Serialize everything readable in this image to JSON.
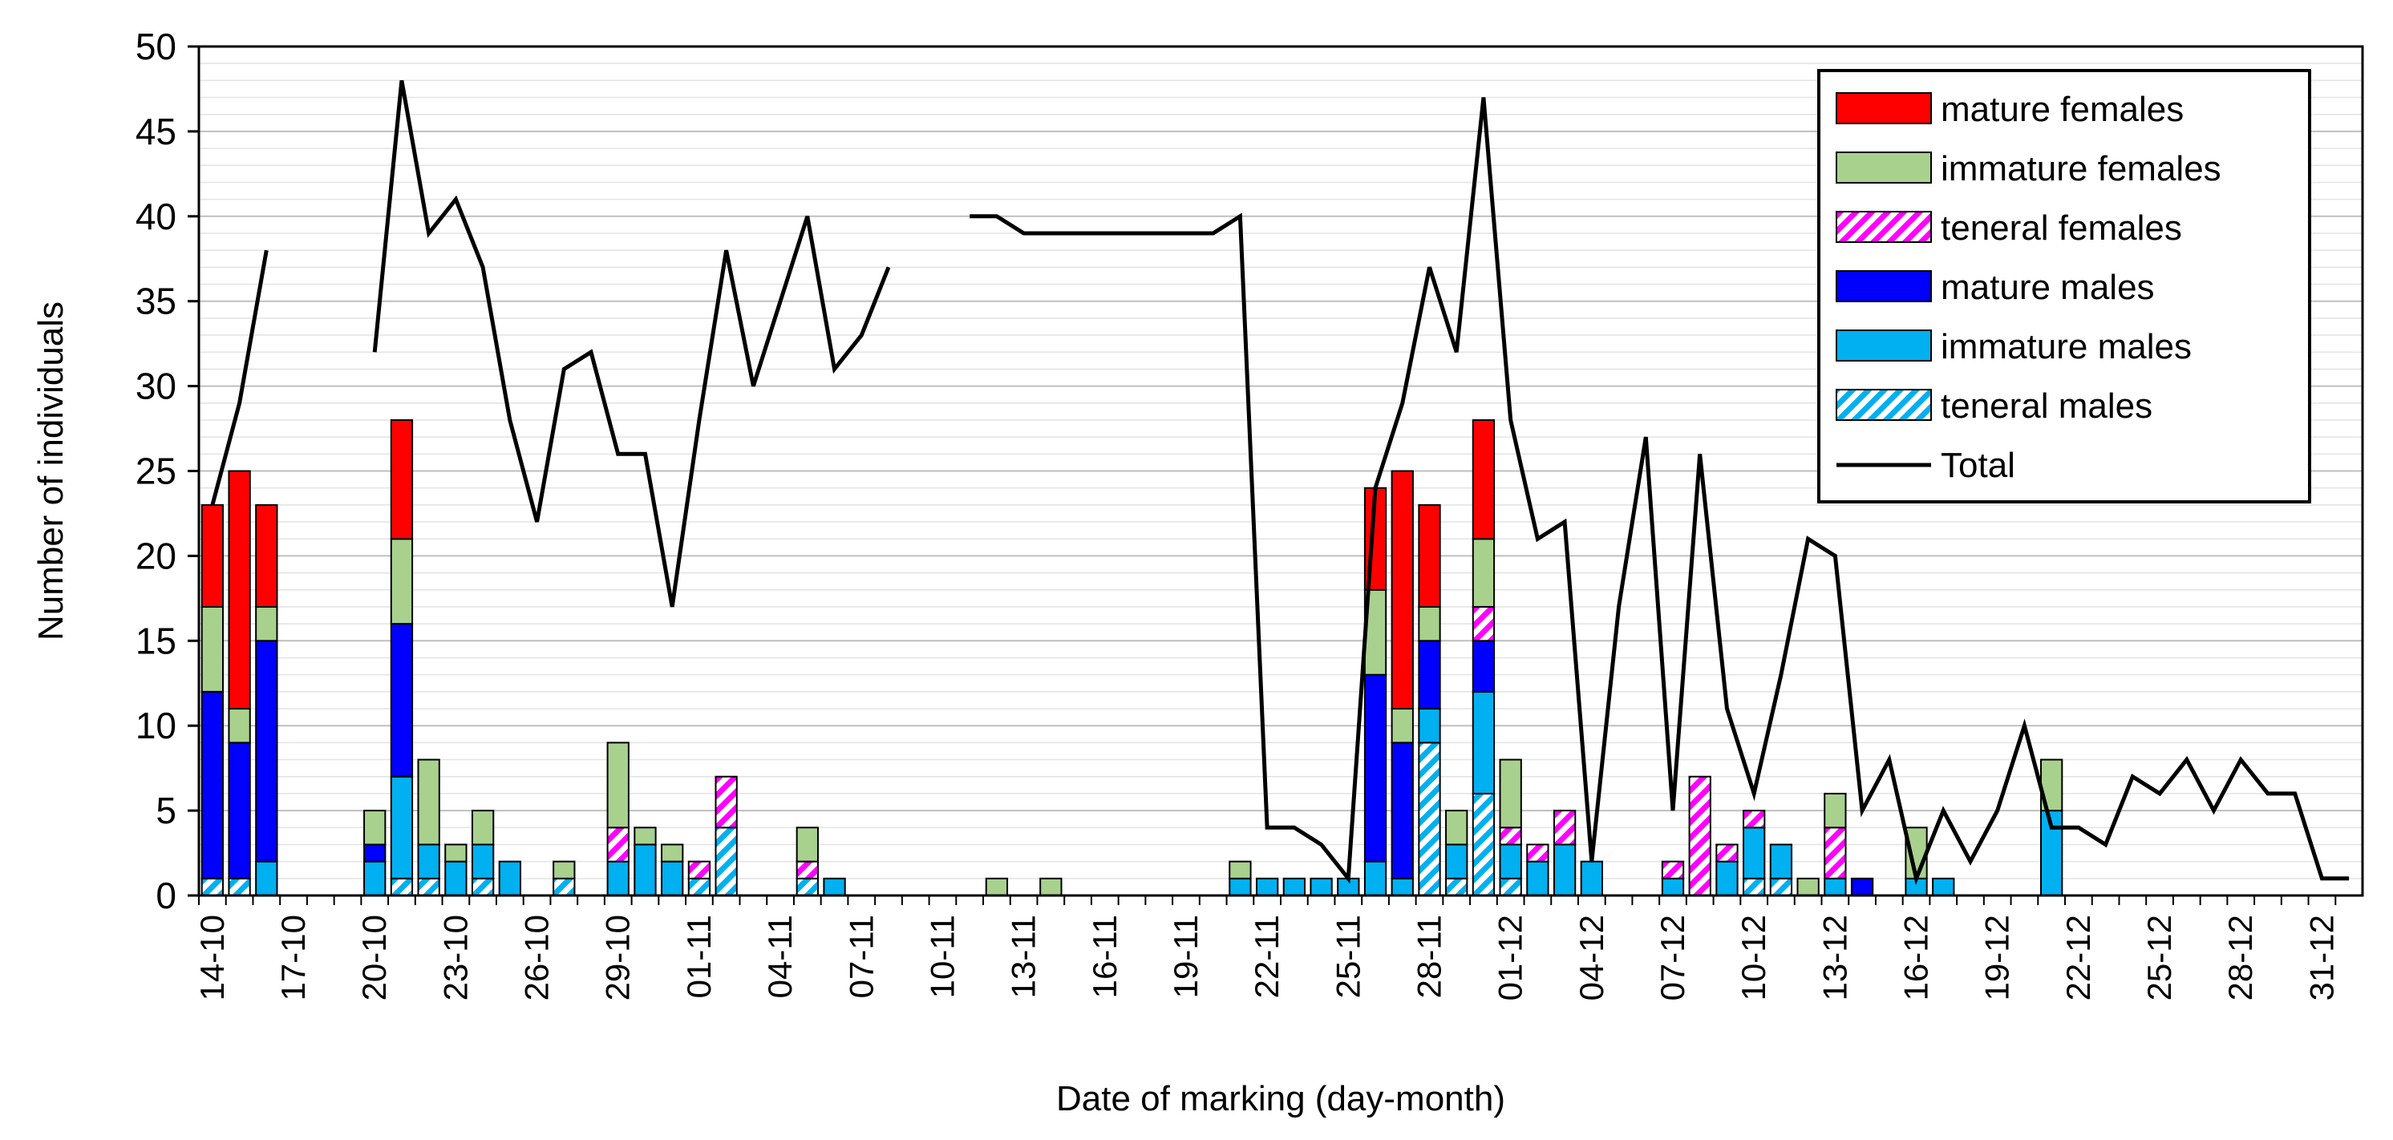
{
  "chart_data": {
    "type": "bar",
    "stacked": true,
    "title": "",
    "xlabel": "Date of marking (day-month)",
    "ylabel": "Number of individuals",
    "ylim": [
      0,
      50
    ],
    "yticks": [
      0,
      5,
      10,
      15,
      20,
      25,
      30,
      35,
      40,
      45,
      50
    ],
    "grid": true,
    "legend_position": "top-right",
    "x": [
      "14-10",
      "15-10",
      "16-10",
      "17-10",
      "18-10",
      "19-10",
      "20-10",
      "21-10",
      "22-10",
      "23-10",
      "24-10",
      "25-10",
      "26-10",
      "27-10",
      "28-10",
      "29-10",
      "30-10",
      "31-10",
      "01-11",
      "02-11",
      "03-11",
      "04-11",
      "05-11",
      "06-11",
      "07-11",
      "08-11",
      "09-11",
      "10-11",
      "11-11",
      "12-11",
      "13-11",
      "14-11",
      "15-11",
      "16-11",
      "17-11",
      "18-11",
      "19-11",
      "20-11",
      "21-11",
      "22-11",
      "23-11",
      "24-11",
      "25-11",
      "26-11",
      "27-11",
      "28-11",
      "29-11",
      "30-11",
      "01-12",
      "02-12",
      "03-12",
      "04-12",
      "05-12",
      "06-12",
      "07-12",
      "08-12",
      "09-12",
      "10-12",
      "11-12",
      "12-12",
      "13-12",
      "14-12",
      "15-12",
      "16-12",
      "17-12",
      "18-12",
      "19-12",
      "20-12",
      "21-12",
      "22-12",
      "23-12",
      "24-12",
      "25-12",
      "26-12",
      "27-12",
      "28-12",
      "29-12",
      "30-12",
      "31-12",
      "01-01"
    ],
    "x_tick_labels": [
      "14-10",
      "17-10",
      "20-10",
      "23-10",
      "26-10",
      "29-10",
      "01-11",
      "04-11",
      "07-11",
      "10-11",
      "13-11",
      "16-11",
      "19-11",
      "22-11",
      "25-11",
      "28-11",
      "01-12",
      "04-12",
      "07-12",
      "10-12",
      "13-12",
      "16-12",
      "19-12",
      "22-12",
      "25-12",
      "28-12",
      "31-12"
    ],
    "series": [
      {
        "name": "teneral males",
        "color": "#00B0F0",
        "pattern": "diagonal-stripes",
        "values": [
          1,
          1,
          0,
          0,
          0,
          0,
          0,
          1,
          1,
          0,
          1,
          0,
          0,
          1,
          0,
          0,
          0,
          0,
          1,
          4,
          0,
          0,
          1,
          0,
          0,
          0,
          0,
          0,
          0,
          0,
          0,
          0,
          0,
          0,
          0,
          0,
          0,
          0,
          0,
          0,
          0,
          0,
          0,
          0,
          0,
          9,
          1,
          6,
          1,
          0,
          0,
          0,
          0,
          0,
          0,
          0,
          0,
          1,
          1,
          0,
          0,
          0,
          0,
          0,
          0,
          0,
          0,
          0,
          0,
          0,
          0,
          0,
          0,
          0,
          0,
          0,
          0,
          0,
          0,
          0
        ]
      },
      {
        "name": "immature males",
        "color": "#00B0F0",
        "pattern": "solid",
        "values": [
          0,
          0,
          2,
          0,
          0,
          0,
          2,
          6,
          2,
          2,
          2,
          2,
          0,
          0,
          0,
          2,
          3,
          2,
          0,
          0,
          0,
          0,
          0,
          1,
          0,
          0,
          0,
          0,
          0,
          0,
          0,
          0,
          0,
          0,
          0,
          0,
          0,
          0,
          1,
          1,
          1,
          1,
          1,
          2,
          1,
          2,
          2,
          6,
          2,
          2,
          3,
          2,
          0,
          0,
          1,
          0,
          2,
          3,
          2,
          0,
          1,
          0,
          0,
          1,
          1,
          0,
          0,
          0,
          5,
          0,
          0,
          0,
          0,
          0,
          0,
          0,
          0,
          0,
          0,
          0
        ]
      },
      {
        "name": "mature males",
        "color": "#0000FF",
        "pattern": "solid",
        "values": [
          11,
          8,
          13,
          0,
          0,
          0,
          1,
          9,
          0,
          0,
          0,
          0,
          0,
          0,
          0,
          0,
          0,
          0,
          0,
          0,
          0,
          0,
          0,
          0,
          0,
          0,
          0,
          0,
          0,
          0,
          0,
          0,
          0,
          0,
          0,
          0,
          0,
          0,
          0,
          0,
          0,
          0,
          0,
          11,
          8,
          4,
          0,
          3,
          0,
          0,
          0,
          0,
          0,
          0,
          0,
          0,
          0,
          0,
          0,
          0,
          0,
          1,
          0,
          0,
          0,
          0,
          0,
          0,
          0,
          0,
          0,
          0,
          0,
          0,
          0,
          0,
          0,
          0,
          0,
          0
        ]
      },
      {
        "name": "teneral females",
        "color": "#FF00FF",
        "pattern": "diagonal-stripes",
        "values": [
          0,
          0,
          0,
          0,
          0,
          0,
          0,
          0,
          0,
          0,
          0,
          0,
          0,
          0,
          0,
          2,
          0,
          0,
          1,
          3,
          0,
          0,
          1,
          0,
          0,
          0,
          0,
          0,
          0,
          0,
          0,
          0,
          0,
          0,
          0,
          0,
          0,
          0,
          0,
          0,
          0,
          0,
          0,
          0,
          0,
          0,
          0,
          2,
          1,
          1,
          2,
          0,
          0,
          0,
          1,
          7,
          1,
          1,
          0,
          0,
          3,
          0,
          0,
          0,
          0,
          0,
          0,
          0,
          0,
          0,
          0,
          0,
          0,
          0,
          0,
          0,
          0,
          0,
          0,
          0
        ]
      },
      {
        "name": "immature females",
        "color": "#A9D18E",
        "pattern": "solid",
        "values": [
          5,
          2,
          2,
          0,
          0,
          0,
          2,
          5,
          5,
          1,
          2,
          0,
          0,
          1,
          0,
          5,
          1,
          1,
          0,
          0,
          0,
          0,
          2,
          0,
          0,
          0,
          0,
          0,
          0,
          1,
          0,
          1,
          0,
          0,
          0,
          0,
          0,
          0,
          1,
          0,
          0,
          0,
          0,
          5,
          2,
          2,
          2,
          4,
          4,
          0,
          0,
          0,
          0,
          0,
          0,
          0,
          0,
          0,
          0,
          1,
          2,
          0,
          0,
          3,
          0,
          0,
          0,
          0,
          3,
          0,
          0,
          0,
          0,
          0,
          0,
          0,
          0,
          0,
          0,
          0
        ]
      },
      {
        "name": "mature females",
        "color": "#FF0000",
        "pattern": "solid",
        "values": [
          6,
          14,
          6,
          0,
          0,
          0,
          0,
          7,
          0,
          0,
          0,
          0,
          0,
          0,
          0,
          0,
          0,
          0,
          0,
          0,
          0,
          0,
          0,
          0,
          0,
          0,
          0,
          0,
          0,
          0,
          0,
          0,
          0,
          0,
          0,
          0,
          0,
          0,
          0,
          0,
          0,
          0,
          0,
          6,
          14,
          6,
          0,
          7,
          0,
          0,
          0,
          0,
          0,
          0,
          0,
          0,
          0,
          0,
          0,
          0,
          0,
          0,
          0,
          0,
          0,
          0,
          0,
          0,
          0,
          0,
          0,
          0,
          0,
          0,
          0,
          0,
          0,
          0,
          0,
          0
        ]
      }
    ],
    "line_series": {
      "name": "Total",
      "color": "#000000",
      "values": [
        23,
        29,
        38,
        null,
        null,
        null,
        32,
        48,
        39,
        41,
        37,
        28,
        22,
        31,
        32,
        26,
        26,
        17,
        28,
        38,
        30,
        35,
        40,
        31,
        33,
        37,
        null,
        null,
        40,
        40,
        39,
        39,
        39,
        39,
        39,
        39,
        39,
        39,
        40,
        4,
        4,
        3,
        1,
        24,
        29,
        37,
        32,
        47,
        28,
        21,
        22,
        2,
        17,
        27,
        5,
        26,
        11,
        6,
        13,
        21,
        20,
        5,
        8,
        1,
        5,
        2,
        5,
        10,
        4,
        4,
        3,
        7,
        6,
        8,
        5,
        8,
        6,
        6,
        1,
        1
      ]
    },
    "legend": [
      "mature females",
      "immature females",
      "teneral females",
      "mature males",
      "immature males",
      "teneral males",
      "Total"
    ]
  }
}
